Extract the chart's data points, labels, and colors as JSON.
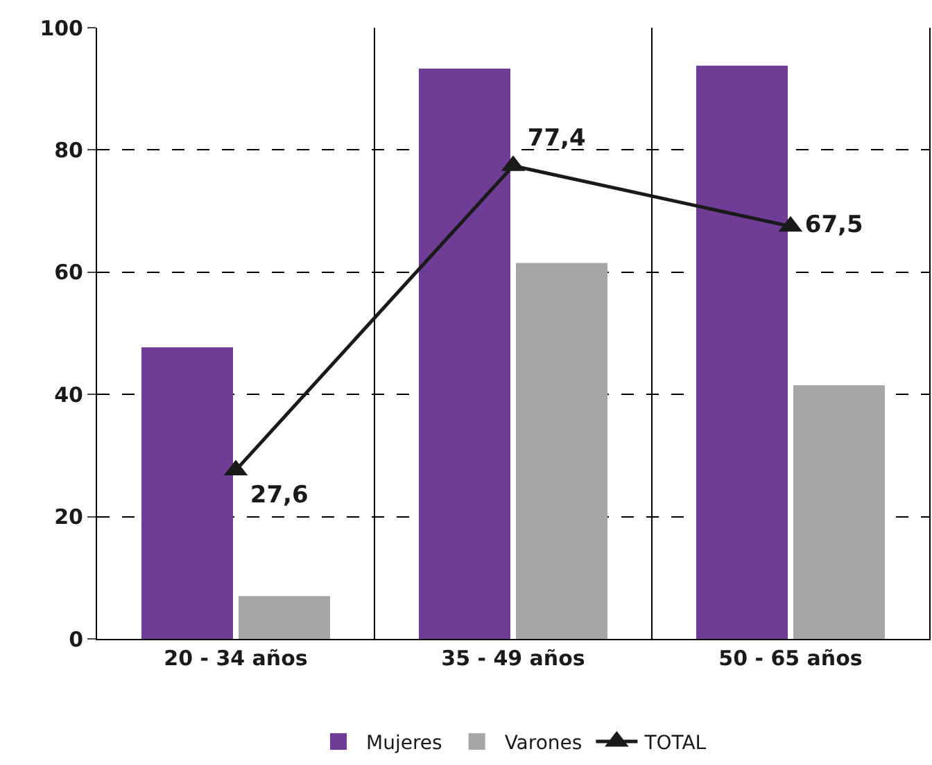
{
  "chart_data": {
    "type": "bar",
    "categories": [
      "20 - 34 años",
      "35 - 49 años",
      "50 - 65 años"
    ],
    "series": [
      {
        "name": "Mujeres",
        "color": "#6f3c96",
        "values": [
          47.7,
          93.3,
          93.8
        ]
      },
      {
        "name": "Varones",
        "color": "#a6a6a6",
        "values": [
          7,
          61.5,
          41.5
        ]
      },
      {
        "name": "TOTAL",
        "type": "line",
        "color": "#1a1a1a",
        "marker": "triangle",
        "values": [
          27.6,
          77.4,
          67.5
        ],
        "value_labels": [
          "27,6",
          "77,4",
          "67,5"
        ]
      }
    ],
    "ylim": [
      0,
      100
    ],
    "yticks": [
      0,
      20,
      40,
      60,
      80,
      100
    ],
    "grid": "y",
    "legend": "bottom"
  }
}
